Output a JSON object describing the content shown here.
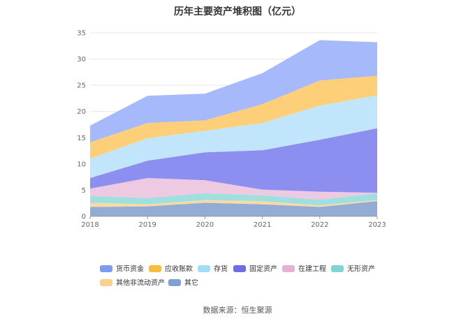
{
  "chart_data": {
    "type": "area",
    "stacked": true,
    "title": "历年主要资产堆积图（亿元）",
    "xlabel": "",
    "ylabel": "",
    "categories": [
      "2018",
      "2019",
      "2020",
      "2021",
      "2022",
      "2023"
    ],
    "ylim": [
      0,
      35
    ],
    "yticks": [
      0,
      5,
      10,
      15,
      20,
      25,
      30,
      35
    ],
    "grid": true,
    "legend_position": "bottom",
    "series": [
      {
        "name": "其它",
        "color": "#93acd6",
        "values": [
          1.8,
          1.9,
          2.6,
          2.3,
          1.8,
          2.9
        ]
      },
      {
        "name": "其他非流动资产",
        "color": "#fcd9a0",
        "values": [
          0.8,
          0.4,
          0.5,
          0.6,
          0.3,
          0.2
        ]
      },
      {
        "name": "无形资产",
        "color": "#9fdfe0",
        "values": [
          1.3,
          1.2,
          1.3,
          1.1,
          1.1,
          1.3
        ]
      },
      {
        "name": "在建工程",
        "color": "#edc9e2",
        "values": [
          1.4,
          3.8,
          2.5,
          1.1,
          1.5,
          0.1
        ]
      },
      {
        "name": "固定资产",
        "color": "#8c8ef0",
        "values": [
          2.0,
          3.3,
          5.3,
          7.5,
          9.9,
          12.3
        ]
      },
      {
        "name": "存货",
        "color": "#c1e6fb",
        "values": [
          3.7,
          4.3,
          4.1,
          5.2,
          6.5,
          6.3
        ]
      },
      {
        "name": "应收账款",
        "color": "#fecf79",
        "values": [
          3.1,
          2.9,
          2.0,
          3.6,
          4.8,
          3.7
        ]
      },
      {
        "name": "货币资金",
        "color": "#a6b9fa",
        "values": [
          3.2,
          5.2,
          5.1,
          5.9,
          7.7,
          6.4
        ]
      }
    ],
    "legend_order": [
      "货币资金",
      "应收账款",
      "存货",
      "固定资产",
      "在建工程",
      "无形资产",
      "其他非流动资产",
      "其它"
    ],
    "legend_colors": {
      "货币资金": "#7f9bf0",
      "应收账款": "#f9bd3e",
      "存货": "#a3dcf8",
      "固定资产": "#6c6ee6",
      "在建工程": "#e4b2d6",
      "无形资产": "#7fd4d6",
      "其他非流动资产": "#f9d08c",
      "其它": "#7fa0d0"
    }
  },
  "source": "数据来源：恒生聚源"
}
